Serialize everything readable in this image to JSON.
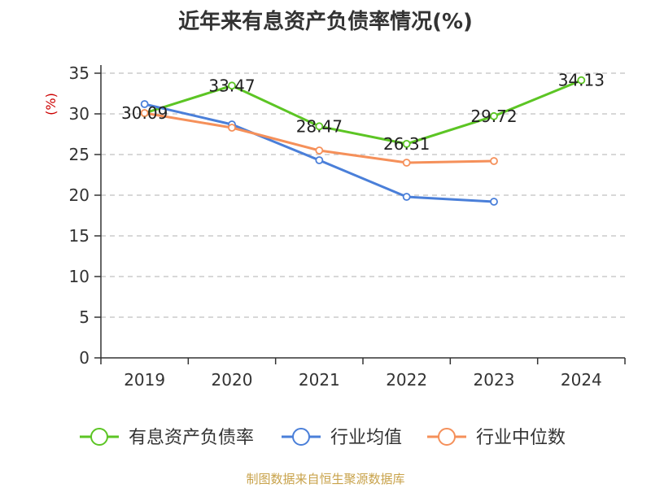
{
  "colors": {
    "series_1": "#5cc524",
    "series_2": "#4a7fd9",
    "series_3": "#f5905a",
    "source": "#c8a24a",
    "ylabel": "#cc0000",
    "grid": "#c0c0c0"
  },
  "source_text": "制图数据来自恒生聚源数据库",
  "chart_data": {
    "type": "line",
    "title": "近年来有息资产负债率情况(%)",
    "ylabel": "(%)",
    "xlabel": "",
    "categories": [
      "2019",
      "2020",
      "2021",
      "2022",
      "2023",
      "2024"
    ],
    "ylim": [
      0,
      35
    ],
    "yticks": [
      0,
      5,
      10,
      15,
      20,
      25,
      30,
      35
    ],
    "grid": true,
    "legend_position": "bottom",
    "series": [
      {
        "name": "有息资产负债率",
        "values": [
          30.09,
          33.47,
          28.47,
          26.31,
          29.72,
          34.13
        ],
        "labels": [
          "30.09",
          "33.47",
          "28.47",
          "26.31",
          "29.72",
          "34.13"
        ]
      },
      {
        "name": "行业均值",
        "values": [
          31.2,
          28.7,
          24.3,
          19.8,
          19.2,
          null
        ]
      },
      {
        "name": "行业中位数",
        "values": [
          30.1,
          28.3,
          25.5,
          24.0,
          24.2,
          null
        ]
      }
    ]
  }
}
